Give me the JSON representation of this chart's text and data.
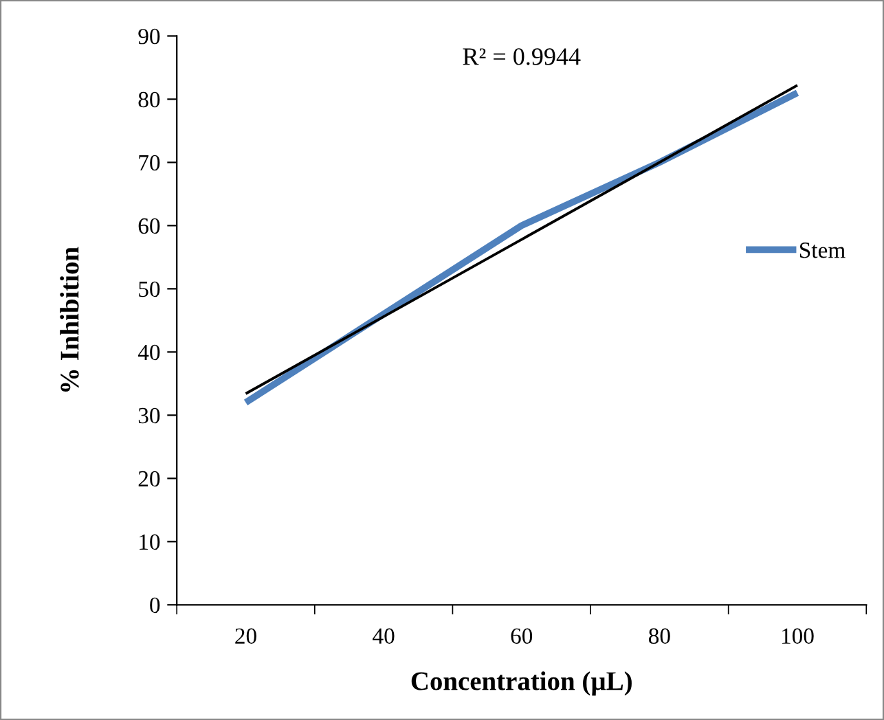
{
  "chart_data": {
    "type": "line",
    "xlabel": "Concentration (µL)",
    "ylabel": "% Inhibition",
    "categories": [
      "20",
      "40",
      "60",
      "80",
      "100"
    ],
    "series": [
      {
        "name": "Stem",
        "color": "#4f81bd",
        "values": [
          32,
          46,
          60,
          70,
          81
        ]
      },
      {
        "color": "#000000",
        "values": [
          33.4,
          45.6,
          57.8,
          70.0,
          82.2
        ]
      }
    ],
    "ylim": [
      0,
      90
    ],
    "yticks": [
      0,
      10,
      20,
      30,
      40,
      50,
      60,
      70,
      80,
      90
    ],
    "annotations": [
      "R² = 0.9944"
    ],
    "legend": "right",
    "grid": false,
    "marker": "none"
  }
}
